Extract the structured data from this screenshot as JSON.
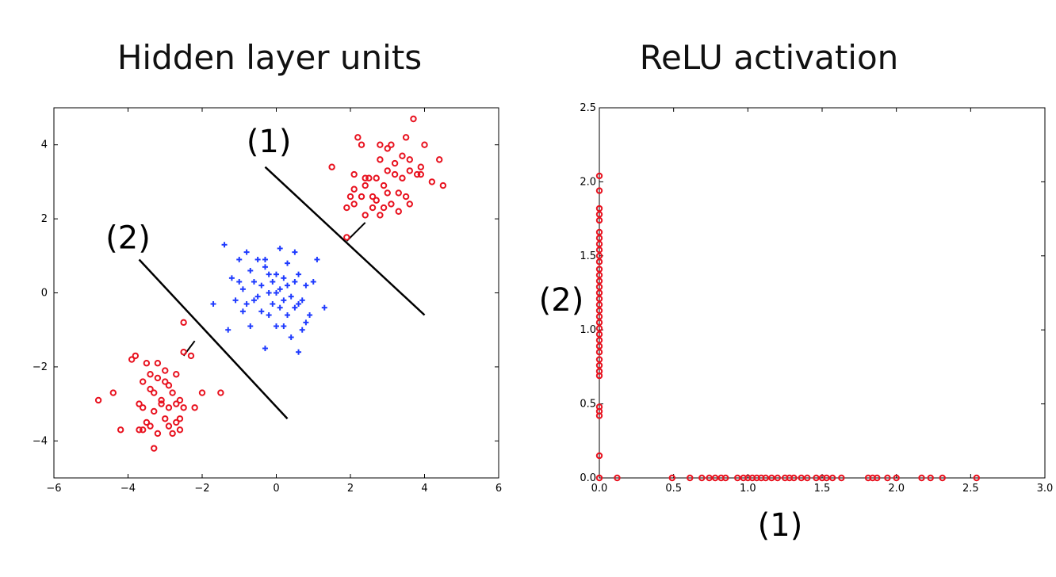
{
  "titles": {
    "left": "Hidden layer units",
    "right": "ReLU activation"
  },
  "colors": {
    "red": "#e8121f",
    "blue": "#1f3bff",
    "line": "#000000"
  },
  "chart_data": [
    {
      "type": "scatter",
      "title": "Hidden layer units",
      "xlim": [
        -6,
        6
      ],
      "ylim": [
        -5,
        5
      ],
      "xticks": [
        "-6",
        "-4",
        "-2",
        "0",
        "2",
        "4",
        "6"
      ],
      "yticks": [
        "-4",
        "-2",
        "0",
        "2",
        "4"
      ],
      "grid": false,
      "series": [
        {
          "marker": "circle",
          "color": "red",
          "points": [
            [
              -4.8,
              -2.9
            ],
            [
              -4.4,
              -2.7
            ],
            [
              -4.2,
              -3.7
            ],
            [
              -3.9,
              -1.8
            ],
            [
              -3.8,
              -1.7
            ],
            [
              -3.7,
              -3.0
            ],
            [
              -3.6,
              -2.4
            ],
            [
              -3.6,
              -3.7
            ],
            [
              -3.5,
              -3.5
            ],
            [
              -3.5,
              -1.9
            ],
            [
              -3.4,
              -2.6
            ],
            [
              -3.4,
              -2.2
            ],
            [
              -3.3,
              -3.2
            ],
            [
              -3.3,
              -4.2
            ],
            [
              -3.2,
              -1.9
            ],
            [
              -3.2,
              -2.3
            ],
            [
              -3.1,
              -2.9
            ],
            [
              -3.1,
              -3.0
            ],
            [
              -3.0,
              -3.4
            ],
            [
              -3.0,
              -2.1
            ],
            [
              -2.9,
              -2.5
            ],
            [
              -2.9,
              -3.1
            ],
            [
              -2.8,
              -3.8
            ],
            [
              -2.8,
              -2.7
            ],
            [
              -2.7,
              -3.5
            ],
            [
              -2.7,
              -2.2
            ],
            [
              -2.6,
              -3.7
            ],
            [
              -2.6,
              -2.9
            ],
            [
              -2.5,
              -3.1
            ],
            [
              -2.5,
              -1.6
            ],
            [
              -2.3,
              -1.7
            ],
            [
              -2.2,
              -3.1
            ],
            [
              -2.0,
              -2.7
            ],
            [
              -2.5,
              -0.8
            ],
            [
              -3.3,
              -2.7
            ],
            [
              -2.9,
              -3.6
            ],
            [
              -3.2,
              -3.8
            ],
            [
              -3.7,
              -3.7
            ],
            [
              -2.6,
              -3.4
            ],
            [
              -3.6,
              -3.1
            ],
            [
              -1.5,
              -2.7
            ],
            [
              -3.0,
              -2.4
            ],
            [
              -3.4,
              -3.6
            ],
            [
              -2.7,
              -3.0
            ],
            [
              1.5,
              3.4
            ],
            [
              1.9,
              1.5
            ],
            [
              1.9,
              2.3
            ],
            [
              2.0,
              2.6
            ],
            [
              2.1,
              2.4
            ],
            [
              2.1,
              3.2
            ],
            [
              2.2,
              4.2
            ],
            [
              2.3,
              2.6
            ],
            [
              2.4,
              2.1
            ],
            [
              2.4,
              2.9
            ],
            [
              2.5,
              3.1
            ],
            [
              2.6,
              2.3
            ],
            [
              2.7,
              3.1
            ],
            [
              2.8,
              3.6
            ],
            [
              2.8,
              2.1
            ],
            [
              2.9,
              2.3
            ],
            [
              3.0,
              3.3
            ],
            [
              3.0,
              2.7
            ],
            [
              3.1,
              4.0
            ],
            [
              3.1,
              2.4
            ],
            [
              3.2,
              3.5
            ],
            [
              3.3,
              2.7
            ],
            [
              3.3,
              2.2
            ],
            [
              3.4,
              3.7
            ],
            [
              3.5,
              2.6
            ],
            [
              3.5,
              4.2
            ],
            [
              3.6,
              3.3
            ],
            [
              3.6,
              2.4
            ],
            [
              3.7,
              4.7
            ],
            [
              3.8,
              3.2
            ],
            [
              3.9,
              3.4
            ],
            [
              4.0,
              4.0
            ],
            [
              4.2,
              3.0
            ],
            [
              4.4,
              3.6
            ],
            [
              4.5,
              2.9
            ],
            [
              2.3,
              4.0
            ],
            [
              2.8,
              4.0
            ],
            [
              3.0,
              3.9
            ],
            [
              3.4,
              3.1
            ],
            [
              3.9,
              3.2
            ],
            [
              2.6,
              2.6
            ],
            [
              3.2,
              3.2
            ],
            [
              2.9,
              2.9
            ],
            [
              3.6,
              3.6
            ],
            [
              2.7,
              2.5
            ],
            [
              2.1,
              2.8
            ],
            [
              2.4,
              3.1
            ]
          ]
        },
        {
          "marker": "plus",
          "color": "blue",
          "points": [
            [
              -1.7,
              -0.3
            ],
            [
              -1.4,
              1.3
            ],
            [
              -1.3,
              -1.0
            ],
            [
              -1.2,
              0.4
            ],
            [
              -1.1,
              -0.2
            ],
            [
              -1.0,
              0.9
            ],
            [
              -0.9,
              0.1
            ],
            [
              -0.8,
              1.1
            ],
            [
              -0.8,
              -0.3
            ],
            [
              -0.7,
              0.6
            ],
            [
              -0.7,
              -0.9
            ],
            [
              -0.6,
              0.3
            ],
            [
              -0.5,
              -0.1
            ],
            [
              -0.5,
              0.9
            ],
            [
              -0.4,
              -0.5
            ],
            [
              -0.4,
              0.2
            ],
            [
              -0.3,
              -1.5
            ],
            [
              -0.3,
              0.7
            ],
            [
              -0.2,
              0.0
            ],
            [
              -0.2,
              -0.6
            ],
            [
              -0.1,
              0.3
            ],
            [
              -0.1,
              -0.3
            ],
            [
              0.0,
              0.5
            ],
            [
              0.0,
              -0.9
            ],
            [
              0.1,
              0.1
            ],
            [
              0.1,
              1.2
            ],
            [
              0.2,
              -0.2
            ],
            [
              0.2,
              0.4
            ],
            [
              0.3,
              -0.6
            ],
            [
              0.3,
              0.8
            ],
            [
              0.4,
              -0.1
            ],
            [
              0.4,
              -1.2
            ],
            [
              0.5,
              0.3
            ],
            [
              0.5,
              -0.4
            ],
            [
              0.6,
              -1.6
            ],
            [
              0.6,
              0.5
            ],
            [
              0.7,
              -0.2
            ],
            [
              0.7,
              -1.0
            ],
            [
              0.8,
              0.2
            ],
            [
              0.9,
              -0.6
            ],
            [
              1.0,
              0.3
            ],
            [
              1.1,
              0.9
            ],
            [
              1.3,
              -0.4
            ],
            [
              -1.0,
              0.3
            ],
            [
              -0.3,
              0.9
            ],
            [
              0.2,
              -0.9
            ],
            [
              0.5,
              1.1
            ],
            [
              -0.6,
              -0.2
            ],
            [
              0.0,
              0.0
            ],
            [
              0.3,
              0.2
            ],
            [
              -0.2,
              0.5
            ],
            [
              0.6,
              -0.3
            ],
            [
              0.8,
              -0.8
            ],
            [
              -0.9,
              -0.5
            ],
            [
              0.1,
              -0.4
            ]
          ]
        }
      ],
      "annotations": [
        {
          "label": "(1)",
          "line": [
            [
              -0.3,
              3.4
            ],
            [
              4.0,
              -0.6
            ]
          ],
          "label_at": [
            -0.2,
            4.1
          ]
        },
        {
          "label": "(2)",
          "line": [
            [
              -3.7,
              0.9
            ],
            [
              0.3,
              -3.4
            ]
          ],
          "label_at": [
            -4.0,
            1.5
          ]
        }
      ],
      "connectors": [
        {
          "from": [
            2.4,
            1.9
          ],
          "to": [
            1.9,
            1.4
          ]
        },
        {
          "from": [
            -2.2,
            -1.3
          ],
          "to": [
            -2.5,
            -1.7
          ]
        }
      ]
    },
    {
      "type": "scatter",
      "title": "ReLU activation",
      "xlabel": "(1)",
      "ylabel": "(2)",
      "xlim": [
        0.0,
        3.0
      ],
      "ylim": [
        0.0,
        2.5
      ],
      "xticks": [
        "0.0",
        "0.5",
        "1.0",
        "1.5",
        "2.0",
        "2.5",
        "3.0"
      ],
      "yticks": [
        "0.0",
        "0.5",
        "1.0",
        "1.5",
        "2.0",
        "2.5"
      ],
      "grid": false,
      "series": [
        {
          "marker": "circle",
          "color": "red",
          "points": [
            [
              0,
              2.04
            ],
            [
              0,
              1.94
            ],
            [
              0,
              1.82
            ],
            [
              0,
              1.78
            ],
            [
              0,
              1.74
            ],
            [
              0,
              1.66
            ],
            [
              0,
              1.62
            ],
            [
              0,
              1.58
            ],
            [
              0,
              1.54
            ],
            [
              0,
              1.5
            ],
            [
              0,
              1.46
            ],
            [
              0,
              1.41
            ],
            [
              0,
              1.37
            ],
            [
              0,
              1.33
            ],
            [
              0,
              1.29
            ],
            [
              0,
              1.25
            ],
            [
              0,
              1.21
            ],
            [
              0,
              1.17
            ],
            [
              0,
              1.13
            ],
            [
              0,
              1.09
            ],
            [
              0,
              1.05
            ],
            [
              0,
              1.01
            ],
            [
              0,
              0.97
            ],
            [
              0,
              0.93
            ],
            [
              0,
              0.89
            ],
            [
              0,
              0.85
            ],
            [
              0,
              0.8
            ],
            [
              0,
              0.76
            ],
            [
              0,
              0.72
            ],
            [
              0,
              0.69
            ],
            [
              0,
              0.48
            ],
            [
              0,
              0.45
            ],
            [
              0,
              0.42
            ],
            [
              0,
              0.15
            ],
            [
              0,
              0.0
            ],
            [
              0.12,
              0
            ],
            [
              0.49,
              0
            ],
            [
              0.61,
              0
            ],
            [
              0.69,
              0
            ],
            [
              0.74,
              0
            ],
            [
              0.78,
              0
            ],
            [
              0.82,
              0
            ],
            [
              0.85,
              0
            ],
            [
              0.93,
              0
            ],
            [
              0.97,
              0
            ],
            [
              1.0,
              0
            ],
            [
              1.03,
              0
            ],
            [
              1.06,
              0
            ],
            [
              1.09,
              0
            ],
            [
              1.12,
              0
            ],
            [
              1.16,
              0
            ],
            [
              1.2,
              0
            ],
            [
              1.25,
              0
            ],
            [
              1.28,
              0
            ],
            [
              1.31,
              0
            ],
            [
              1.36,
              0
            ],
            [
              1.4,
              0
            ],
            [
              1.46,
              0
            ],
            [
              1.5,
              0
            ],
            [
              1.53,
              0
            ],
            [
              1.57,
              0
            ],
            [
              1.63,
              0
            ],
            [
              1.81,
              0
            ],
            [
              1.84,
              0
            ],
            [
              1.87,
              0
            ],
            [
              1.94,
              0
            ],
            [
              2.0,
              0
            ],
            [
              2.17,
              0
            ],
            [
              2.23,
              0
            ],
            [
              2.31,
              0
            ],
            [
              2.54,
              0
            ]
          ]
        }
      ]
    }
  ]
}
